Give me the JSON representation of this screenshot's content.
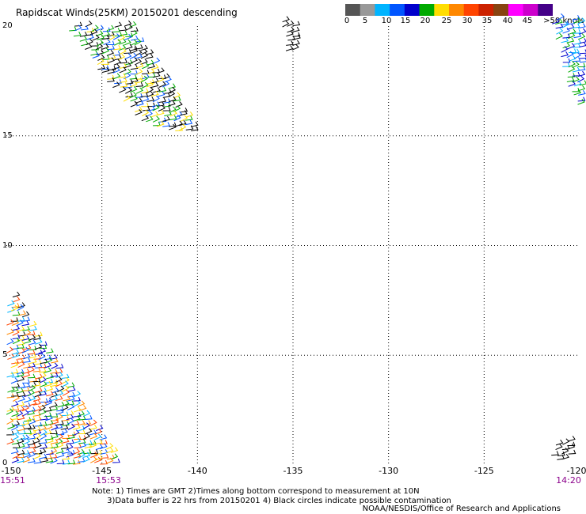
{
  "title": "Rapidscat Winds(25KM) 20150201 descending",
  "colorbar": {
    "colors": [
      "#555555",
      "#999999",
      "#00b4ff",
      "#0055ff",
      "#0000cc",
      "#00aa00",
      "#ffdd00",
      "#ff8800",
      "#ff4400",
      "#cc2200",
      "#884411",
      "#ff00ff",
      "#cc00cc",
      "#440088"
    ],
    "labels": [
      "0",
      "5",
      "10",
      "15",
      "20",
      "25",
      "30",
      "35",
      "40",
      "45",
      ">50 knots"
    ]
  },
  "axes": {
    "lat_labels": [
      "20",
      "15",
      "10",
      "5",
      "0"
    ],
    "lon_labels": [
      "-150",
      "-145",
      "-140",
      "-135",
      "-130",
      "-125",
      "-120"
    ],
    "time_labels": [
      "15:51",
      "15:53",
      "14:20"
    ],
    "lat_range": [
      0,
      20
    ],
    "lon_range": [
      -150,
      -120
    ]
  },
  "notes": {
    "line1": "Note: 1) Times are GMT 2)Times along bottom correspond to measurement at 10N",
    "line2": "3)Data buffer is 22 hrs from 20150201 4) Black circles indicate possible contamination",
    "credit": "NOAA/NESDIS/Office of Research and Applications"
  },
  "swaths": [
    {
      "name": "northwest-swath",
      "corners": [
        [
          -147,
          20
        ],
        [
          -143.5,
          20
        ],
        [
          -140,
          15
        ],
        [
          -143,
          15.5
        ]
      ],
      "colors": [
        "#000000",
        "#0055ff",
        "#00aa00",
        "#000000",
        "#ffdd00"
      ]
    },
    {
      "name": "north-center-swath",
      "corners": [
        [
          -135.6,
          20.2
        ],
        [
          -134.9,
          20.2
        ],
        [
          -135,
          18.8
        ],
        [
          -135.5,
          18.9
        ]
      ],
      "colors": [
        "#000000"
      ]
    },
    {
      "name": "northeast-swath",
      "corners": [
        [
          -121.5,
          20.3
        ],
        [
          -119.8,
          20.3
        ],
        [
          -119.8,
          15.8
        ],
        [
          -120.8,
          17.5
        ]
      ],
      "colors": [
        "#0055ff",
        "#0000cc",
        "#00aa00",
        "#00b4ff"
      ]
    },
    {
      "name": "southwest-swath",
      "corners": [
        [
          -150,
          8.3
        ],
        [
          -150,
          0
        ],
        [
          -144.1,
          0
        ],
        [
          -148.2,
          5.5
        ]
      ],
      "colors": [
        "#00aa00",
        "#0055ff",
        "#0000cc",
        "#00b4ff",
        "#000000",
        "#ffdd00",
        "#ff8800",
        "#ff4400"
      ]
    },
    {
      "name": "southeast-swath",
      "corners": [
        [
          -121.5,
          1.1
        ],
        [
          -120.5,
          1.1
        ],
        [
          -120.5,
          0.2
        ],
        [
          -121.5,
          0.2
        ]
      ],
      "colors": [
        "#000000"
      ]
    }
  ]
}
